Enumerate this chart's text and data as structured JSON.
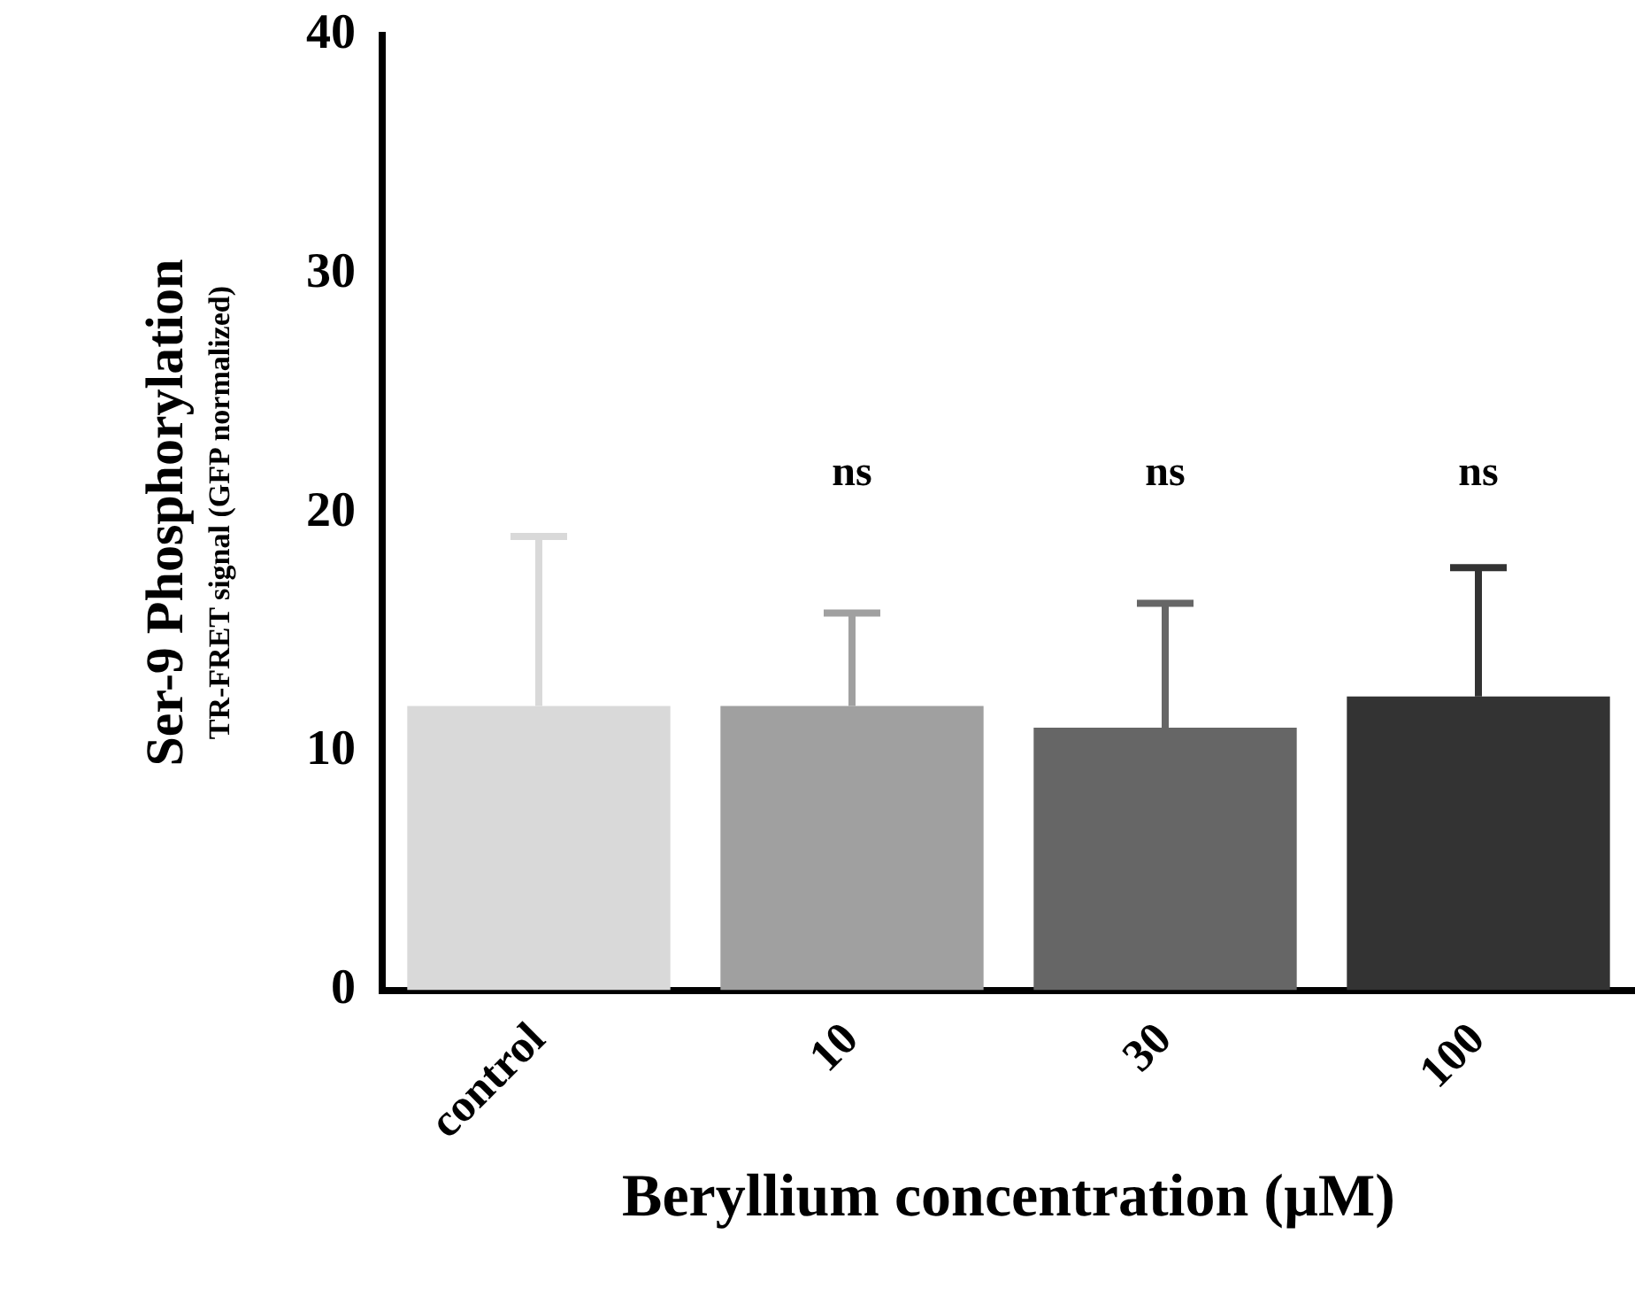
{
  "chart_data": {
    "type": "bar",
    "xlabel": "Beryllium concentration (µM)",
    "ylabel": "Ser-9 Phosphorylation",
    "categories": [
      "control",
      "10",
      "30",
      "100"
    ],
    "values": [
      11.9,
      11.9,
      11.0,
      12.3
    ],
    "colors": [
      "#d9d9d9",
      "#a0a0a0",
      "#666666",
      "#333333"
    ],
    "errors": [
      [
        11.9,
        19.0
      ],
      [
        11.9,
        15.8
      ],
      [
        11.0,
        16.2
      ],
      [
        12.3,
        17.7
      ]
    ],
    "ylim": [
      0,
      40
    ],
    "yticks": [
      0,
      10,
      20,
      30,
      40
    ],
    "grid": false,
    "legend": false,
    "annotations": [
      "TR-FRET signal (GFP normalized)",
      "ns",
      "ns",
      "ns"
    ]
  }
}
